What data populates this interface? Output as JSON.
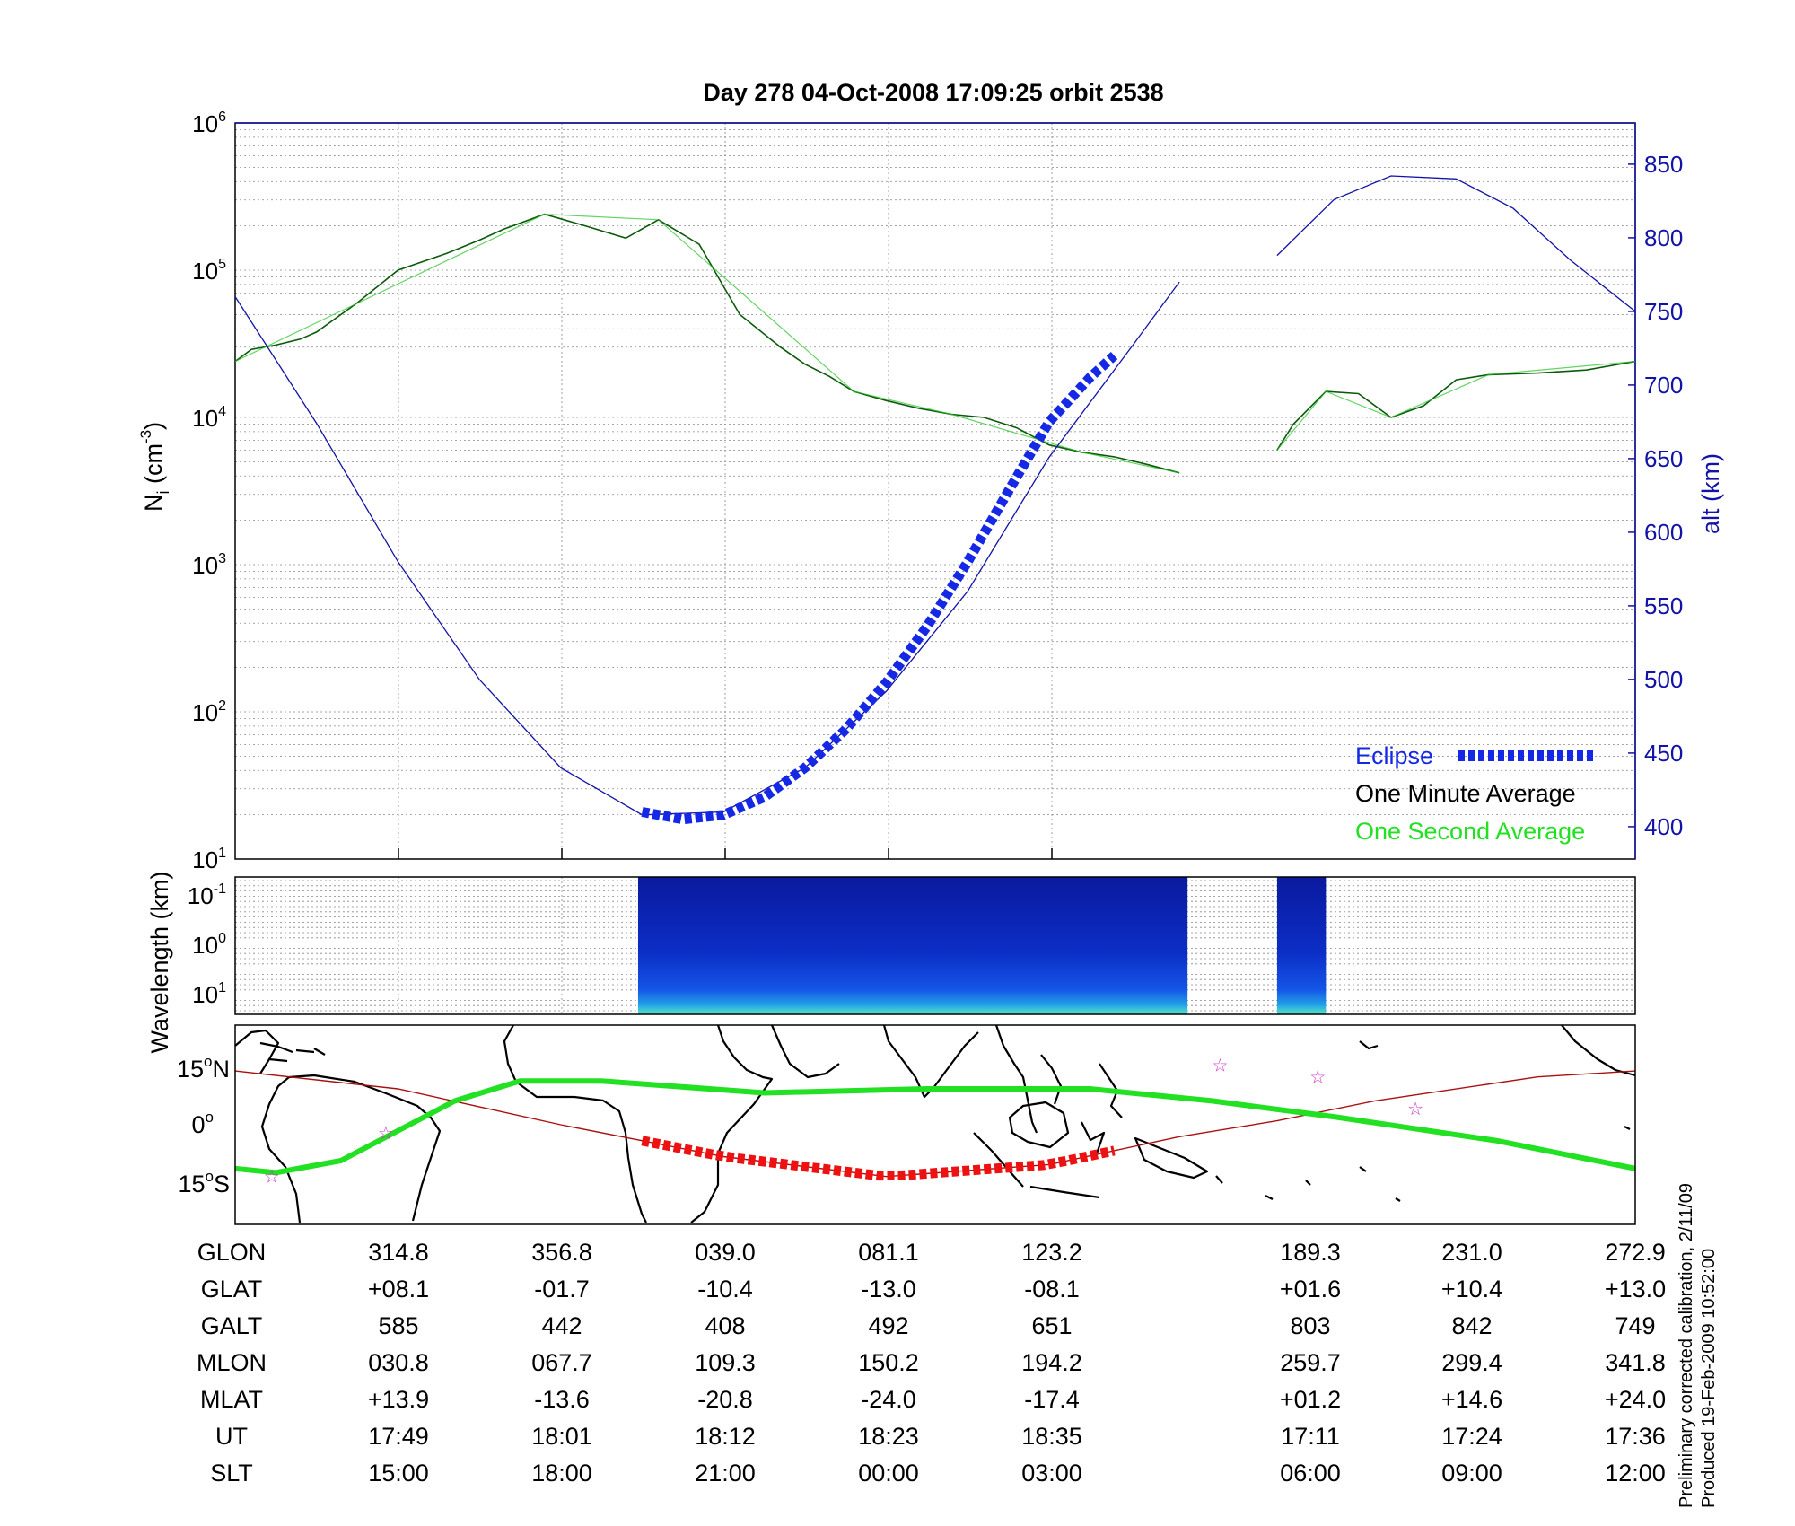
{
  "title": "Day 278  04-Oct-2008 17:09:25   orbit 2538",
  "colors": {
    "density_line": "#0b5a0b",
    "second_avg": "#22c222",
    "altitude": "#1212a8",
    "eclipse": "#1528e6",
    "ground_track_eclipse": "#ee1111",
    "ground_track": "#aa1010",
    "magnetic_equator": "#22e022",
    "stars": "#cc33cc",
    "grid": "#888888"
  },
  "panel_top": {
    "ylabel": "N",
    "ylabel_sub": "i",
    "ylabel_units": " (cm",
    "ylabel_exp": "-3",
    "ylabel_close": ")",
    "y_ticks": [
      {
        "base": "10",
        "exp": "1"
      },
      {
        "base": "10",
        "exp": "2"
      },
      {
        "base": "10",
        "exp": "3"
      },
      {
        "base": "10",
        "exp": "4"
      },
      {
        "base": "10",
        "exp": "5"
      },
      {
        "base": "10",
        "exp": "6"
      }
    ],
    "right_ylabel": "alt (km)",
    "right_ticks": [
      "400",
      "450",
      "500",
      "550",
      "600",
      "650",
      "700",
      "750",
      "800",
      "850"
    ],
    "legend": {
      "eclipse": "Eclipse",
      "one_minute": "One Minute Average",
      "one_second": "One Second Average"
    }
  },
  "panel_mid": {
    "ylabel": "Wavelength (km)",
    "y_ticks": [
      {
        "base": "10",
        "exp": "-1"
      },
      {
        "base": "10",
        "exp": "0"
      },
      {
        "base": "10",
        "exp": "1"
      }
    ]
  },
  "panel_map": {
    "lat_ticks": [
      {
        "value": "15",
        "deg": "o",
        "dir": "N"
      },
      {
        "value": "0",
        "deg": "o",
        "dir": ""
      },
      {
        "value": "15",
        "deg": "o",
        "dir": "S"
      }
    ]
  },
  "table": {
    "row_labels": [
      "GLON",
      "GLAT",
      "GALT",
      "MLON",
      "MLAT",
      "UT",
      "SLT"
    ],
    "columns": [
      [
        "314.8",
        "+08.1",
        "585",
        "030.8",
        "+13.9",
        "17:49",
        "15:00"
      ],
      [
        "356.8",
        "-01.7",
        "442",
        "067.7",
        "-13.6",
        "18:01",
        "18:00"
      ],
      [
        "039.0",
        "-10.4",
        "408",
        "109.3",
        "-20.8",
        "18:12",
        "21:00"
      ],
      [
        "081.1",
        "-13.0",
        "492",
        "150.2",
        "-24.0",
        "18:23",
        "00:00"
      ],
      [
        "123.2",
        "-08.1",
        "651",
        "194.2",
        "-17.4",
        "18:35",
        "03:00"
      ],
      [
        "189.3",
        "+01.6",
        "803",
        "259.7",
        "+01.2",
        "17:11",
        "06:00"
      ],
      [
        "231.0",
        "+10.4",
        "842",
        "299.4",
        "+14.6",
        "17:24",
        "09:00"
      ],
      [
        "272.9",
        "+13.0",
        "749",
        "341.8",
        "+24.0",
        "17:36",
        "12:00"
      ]
    ]
  },
  "footnote": {
    "line1": "Preliminary corrected calibration, 2/11/09",
    "line2": "Produced 19-Feb-2009 10:52:00"
  },
  "chart_data": [
    {
      "type": "line",
      "description": "Ion density (log scale) with altitude on right axis",
      "ylim": [
        10,
        1000000
      ],
      "y_scale": "log",
      "right_ylim": [
        378,
        878
      ],
      "x_index_ticks": [
        0,
        1,
        2,
        3,
        4,
        5,
        6,
        7,
        8
      ],
      "series": [
        {
          "name": "One Minute Average",
          "segments": [
            {
              "x": [
                0,
                0.2,
                0.5,
                0.8,
                1.0,
                1.5,
                2.0,
                2.6,
                3.0,
                3.3,
                3.8,
                4.3,
                4.8,
                5.2,
                5.7,
                6.2,
                6.7,
                7.0,
                7.3,
                7.6
              ],
              "y": [
                24000,
                29000,
                31000,
                34000,
                38000,
                60000,
                100000,
                130000,
                160000,
                190000,
                240000,
                200000,
                165000,
                220000,
                150000,
                50000,
                30000,
                23000,
                19000,
                15000
              ]
            },
            {
              "x": [
                7.6,
                8.0,
                8.4,
                8.8,
                9.2,
                9.6,
                10.0,
                10.4,
                10.8,
                11.2,
                11.6
              ],
              "y": [
                15000,
                13000,
                11500,
                10500,
                10000,
                8500,
                6500,
                5800,
                5400,
                4800,
                4200
              ]
            },
            {
              "x": [
                12.8,
                13.0,
                13.4,
                13.8,
                14.2,
                14.6,
                15.0,
                15.4,
                16.0,
                16.6,
                17.2
              ],
              "y": [
                6000,
                9000,
                15000,
                14500,
                10000,
                12000,
                18000,
                19500,
                20000,
                21000,
                24000
              ]
            }
          ]
        },
        {
          "name": "One Second Average",
          "segments": [
            {
              "x": [
                0,
                3.8,
                5.2,
                7.6,
                8.8,
                10.4,
                11.6
              ],
              "y": [
                24000,
                240000,
                220000,
                15000,
                10500,
                5800,
                4200
              ]
            },
            {
              "x": [
                12.8,
                13.4,
                14.2,
                15.4,
                17.2
              ],
              "y": [
                6000,
                15000,
                10000,
                19500,
                24000
              ]
            }
          ]
        },
        {
          "name": "alt (km)",
          "axis": "right",
          "segments": [
            {
              "x": [
                0,
                1,
                2,
                3,
                4,
                5,
                6,
                7,
                8,
                9,
                10,
                11,
                11.6
              ],
              "y": [
                760,
                674,
                580,
                500,
                440,
                408,
                410,
                440,
                492,
                560,
                651,
                725,
                770
              ]
            },
            {
              "x": [
                12.8,
                13.5,
                14.2,
                15.0,
                15.7,
                16.4,
                17.2
              ],
              "y": [
                788,
                826,
                842,
                840,
                820,
                785,
                750
              ]
            }
          ]
        },
        {
          "name": "Eclipse",
          "axis": "right",
          "x": [
            5.0,
            5.5,
            6.0,
            6.5,
            7.0,
            7.5,
            8.0,
            8.5,
            9.0,
            9.5,
            10.0,
            10.5,
            10.8
          ],
          "y": [
            410,
            405,
            408,
            420,
            440,
            466,
            498,
            536,
            580,
            628,
            675,
            705,
            720
          ]
        }
      ]
    },
    {
      "type": "heatmap",
      "description": "Wavelength spectrogram, data blocks present",
      "y_scale": "log",
      "blocks": [
        {
          "x_start": 4.95,
          "x_end": 11.7
        },
        {
          "x_start": 12.8,
          "x_end": 13.4
        }
      ]
    },
    {
      "type": "line",
      "description": "Ground track map, geographic latitude",
      "ylim": [
        -25,
        25
      ],
      "series": [
        {
          "name": "Ground track",
          "x": [
            0,
            2,
            4,
            6,
            8,
            10,
            11.6,
            12.8,
            14,
            16,
            17.2
          ],
          "y": [
            13.5,
            9,
            0,
            -8,
            -13,
            -10,
            -3,
            1,
            6,
            12,
            13.5
          ]
        },
        {
          "name": "Magnetic equator",
          "x": [
            0,
            0.5,
            1.3,
            2.7,
            3.5,
            4.5,
            6.5,
            8.5,
            10.5,
            12,
            13.5,
            15.5,
            17.2
          ],
          "y": [
            -11,
            -12,
            -9,
            6,
            11,
            11,
            8,
            9,
            9,
            6,
            2,
            -4,
            -11
          ]
        }
      ]
    }
  ]
}
